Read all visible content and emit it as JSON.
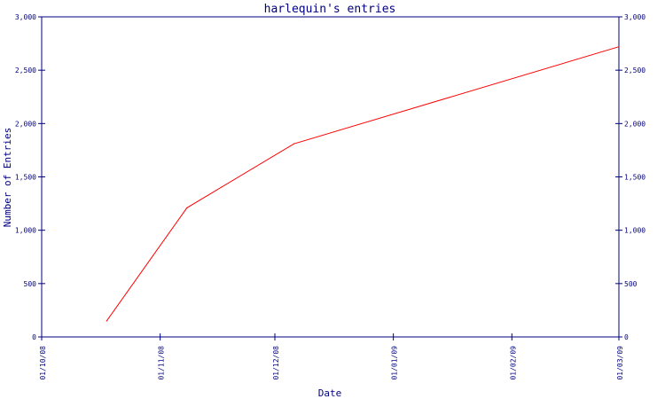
{
  "chart_data": {
    "type": "line",
    "title": "harlequin's entries",
    "xlabel": "Date",
    "ylabel": "Number of Entries",
    "x_ticks": [
      "01/10/08",
      "01/11/08",
      "01/12/08",
      "01/01/09",
      "01/02/09",
      "01/03/09"
    ],
    "y_ticks": [
      "0",
      "500",
      "1,000",
      "1,500",
      "2,000",
      "2,500",
      "3,000"
    ],
    "xlim": [
      "2008-10-01",
      "2009-03-01"
    ],
    "ylim": [
      0,
      3000
    ],
    "grid": false,
    "right_axis": true,
    "series": [
      {
        "color": "#ff0000",
        "points": [
          {
            "date": "2008-10-18",
            "value": 150
          },
          {
            "date": "2008-11-08",
            "value": 1210
          },
          {
            "date": "2008-12-06",
            "value": 1810
          },
          {
            "date": "2009-03-01",
            "value": 2720
          }
        ]
      }
    ]
  },
  "colors": {
    "axis": "#000080",
    "line": "#ff0000",
    "background": "#ffffff"
  }
}
